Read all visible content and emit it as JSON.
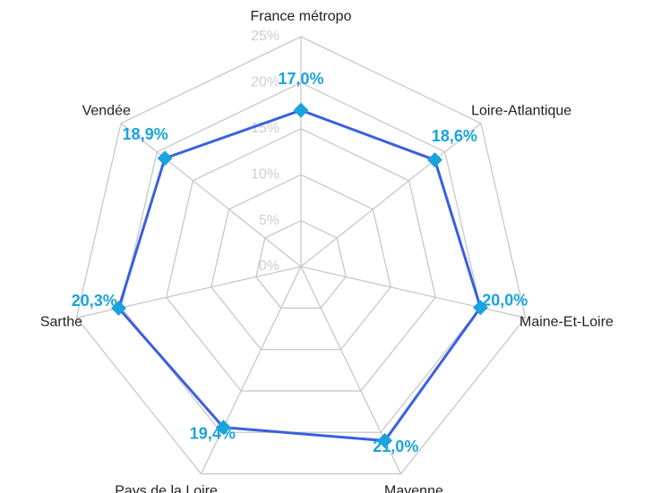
{
  "chart_data": {
    "type": "radar",
    "categories": [
      "France métropo",
      "Loire-Atlantique",
      "Maine-Et-Loire",
      "Mayenne",
      "Pays de la Loire",
      "Sarthe",
      "Vendée"
    ],
    "series": [
      {
        "name": null,
        "color": "#3a5fe0",
        "marker_color": "#1aa3dc",
        "values": [
          17.0,
          18.6,
          20.0,
          21.0,
          19.4,
          20.3,
          18.9
        ],
        "value_labels": [
          "17,0%",
          "18,6%",
          "20,0%",
          "21,0%",
          "19,4%",
          "20,3%",
          "18,9%"
        ]
      }
    ],
    "ylim": [
      0,
      25
    ],
    "yticks": [
      {
        "value": 0,
        "label": "0%"
      },
      {
        "value": 5,
        "label": "5%"
      },
      {
        "value": 10,
        "label": "10%"
      },
      {
        "value": 15,
        "label": "15%"
      },
      {
        "value": 20,
        "label": "20%"
      },
      {
        "value": 25,
        "label": "25%"
      }
    ],
    "grid": true
  }
}
